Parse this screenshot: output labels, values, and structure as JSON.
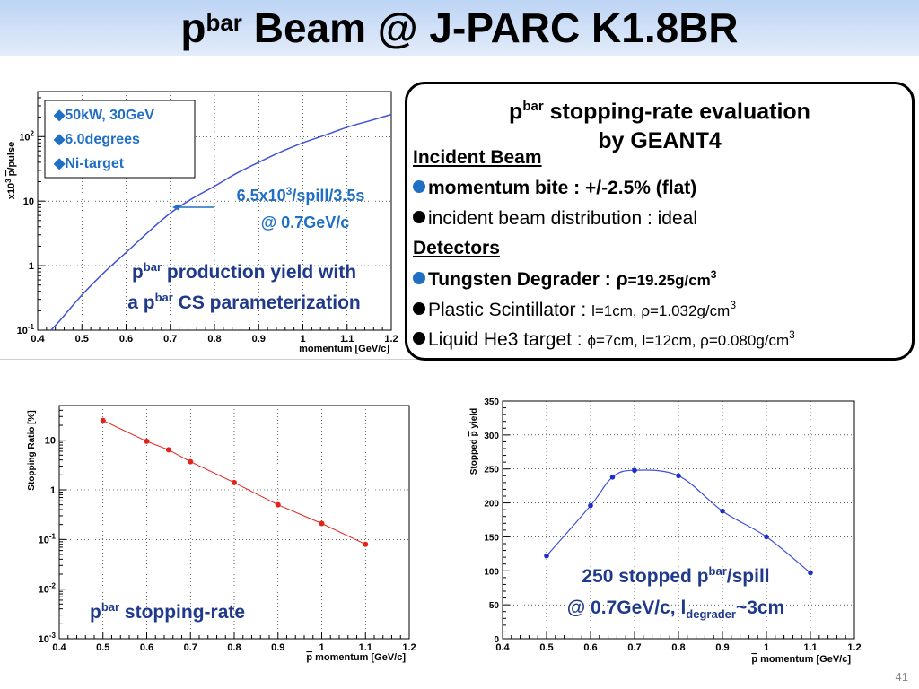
{
  "slide": {
    "title_prefix": "p",
    "title_sup": "bar",
    "title_rest": " Beam @ J-PARC K1.8BR",
    "page_number": "41"
  },
  "box": {
    "title_line1_prefix": "p",
    "title_line1_sup": "bar",
    "title_line1_rest": " stopping-rate evaluation",
    "title_line2": "by GEANT4",
    "incident_heading": "Incident Beam",
    "item1": "momentum bite : +/-2.5% (flat)",
    "item2": "incident beam distribution :  ideal",
    "detectors_heading": "Detectors",
    "item3_label": "Tungsten Degrader : ",
    "item3_rho": "ρ",
    "item3_value": "=19.25g/cm",
    "item3_exp": "3",
    "item4_label": "Plastic Scintillator : ",
    "item4_value": "l=1cm, ρ=1.032g/cm",
    "item4_exp": "3",
    "item5_label": "Liquid He3 target : ",
    "item5_value": "ϕ=7cm, l=12cm, ρ=0.080g/cm",
    "item5_exp": "3"
  },
  "colors": {
    "blue_text": "#1f6fc5",
    "navy_text": "#1f3a8a",
    "curve_blue": "#3f51d8",
    "red": "#e2231a"
  },
  "chart_data": [
    {
      "type": "line",
      "ylabel_prefix": "x10",
      "ylabel_exp": "3",
      "ylabel_middle": " ",
      "ylabel_p": "p",
      "ylabel_rest": "/pulse",
      "xlabel": "momentum [GeV/c]",
      "xlim": [
        0.4,
        1.2
      ],
      "ylim": [
        0.1,
        500
      ],
      "yscale": "log",
      "xticks": [
        "0.4",
        "0.5",
        "0.6",
        "0.7",
        "0.8",
        "0.9",
        "1",
        "1.1",
        "1.2"
      ],
      "yticks": [
        {
          "v": 0.1,
          "m": "10",
          "e": "-1"
        },
        {
          "v": 1,
          "m": "1",
          "e": ""
        },
        {
          "v": 10,
          "m": "10",
          "e": ""
        },
        {
          "v": 100,
          "m": "10",
          "e": "2"
        }
      ],
      "grid": true,
      "legend": [
        "50kW, 30GeV",
        "6.0degrees",
        "Ni-target"
      ],
      "series": [
        {
          "x": [
            0.43,
            0.45,
            0.5,
            0.55,
            0.6,
            0.65,
            0.7,
            0.75,
            0.8,
            0.85,
            0.9,
            0.95,
            1.0,
            1.05,
            1.1,
            1.15,
            1.2
          ],
          "y": [
            0.1,
            0.14,
            0.35,
            0.78,
            1.6,
            3.3,
            6.5,
            11,
            17,
            27,
            40,
            58,
            80,
            105,
            140,
            175,
            220
          ]
        }
      ],
      "annotation_line1_main": "6.5x10",
      "annotation_line1_exp": "3",
      "annotation_line1_rest": "/spill/3.5s",
      "annotation_line2": "@ 0.7GeV/c",
      "caption1_prefix": "p",
      "caption1_sup": "bar",
      "caption1_rest": " production yield with",
      "caption2_prefix": "a p",
      "caption2_sup": "bar",
      "caption2_rest": " CS parameterization"
    },
    {
      "type": "line",
      "ylabel": "Stopping Ratio [%]",
      "xlabel_bar": "p",
      "xlabel_rest": " momentum [GeV/c]",
      "xlim": [
        0.4,
        1.2
      ],
      "ylim": [
        0.001,
        50
      ],
      "yscale": "log",
      "xticks": [
        "0.4",
        "0.5",
        "0.6",
        "0.7",
        "0.8",
        "0.9",
        "1",
        "1.1",
        "1.2"
      ],
      "yticks": [
        {
          "v": 0.001,
          "m": "10",
          "e": "-3"
        },
        {
          "v": 0.01,
          "m": "10",
          "e": "-2"
        },
        {
          "v": 0.1,
          "m": "10",
          "e": "-1"
        },
        {
          "v": 1,
          "m": "1",
          "e": ""
        },
        {
          "v": 10,
          "m": "10",
          "e": ""
        }
      ],
      "grid": true,
      "series": [
        {
          "x": [
            0.5,
            0.6,
            0.65,
            0.7,
            0.8,
            0.9,
            1.0,
            1.1
          ],
          "y": [
            25,
            9.5,
            6.4,
            3.7,
            1.4,
            0.5,
            0.21,
            0.08
          ]
        }
      ],
      "caption_prefix": "p",
      "caption_sup": "bar",
      "caption_rest": " stopping-rate"
    },
    {
      "type": "line",
      "ylabel_prefix": "Stopped ",
      "ylabel_bar": "p",
      "ylabel_rest": " yield",
      "xlabel_bar": "p",
      "xlabel_rest": " momentum [GeV/c]",
      "xlim": [
        0.4,
        1.2
      ],
      "ylim": [
        0,
        350
      ],
      "yscale": "linear",
      "xticks": [
        "0.4",
        "0.5",
        "0.6",
        "0.7",
        "0.8",
        "0.9",
        "1",
        "1.1",
        "1.2"
      ],
      "yticks": [
        "0",
        "50",
        "100",
        "150",
        "200",
        "250",
        "300",
        "350"
      ],
      "grid": true,
      "series": [
        {
          "x": [
            0.5,
            0.6,
            0.65,
            0.7,
            0.8,
            0.9,
            1.0,
            1.1
          ],
          "y": [
            122,
            196,
            238,
            248,
            240,
            188,
            150,
            97
          ]
        }
      ],
      "caption_line1_main": "250 stopped p",
      "caption_line1_sup": "bar",
      "caption_line1_rest": "/spill",
      "caption_line2_main": "@ 0.7GeV/c, l",
      "caption_line2_sub": "degrader",
      "caption_line2_rest": "~3cm"
    }
  ]
}
